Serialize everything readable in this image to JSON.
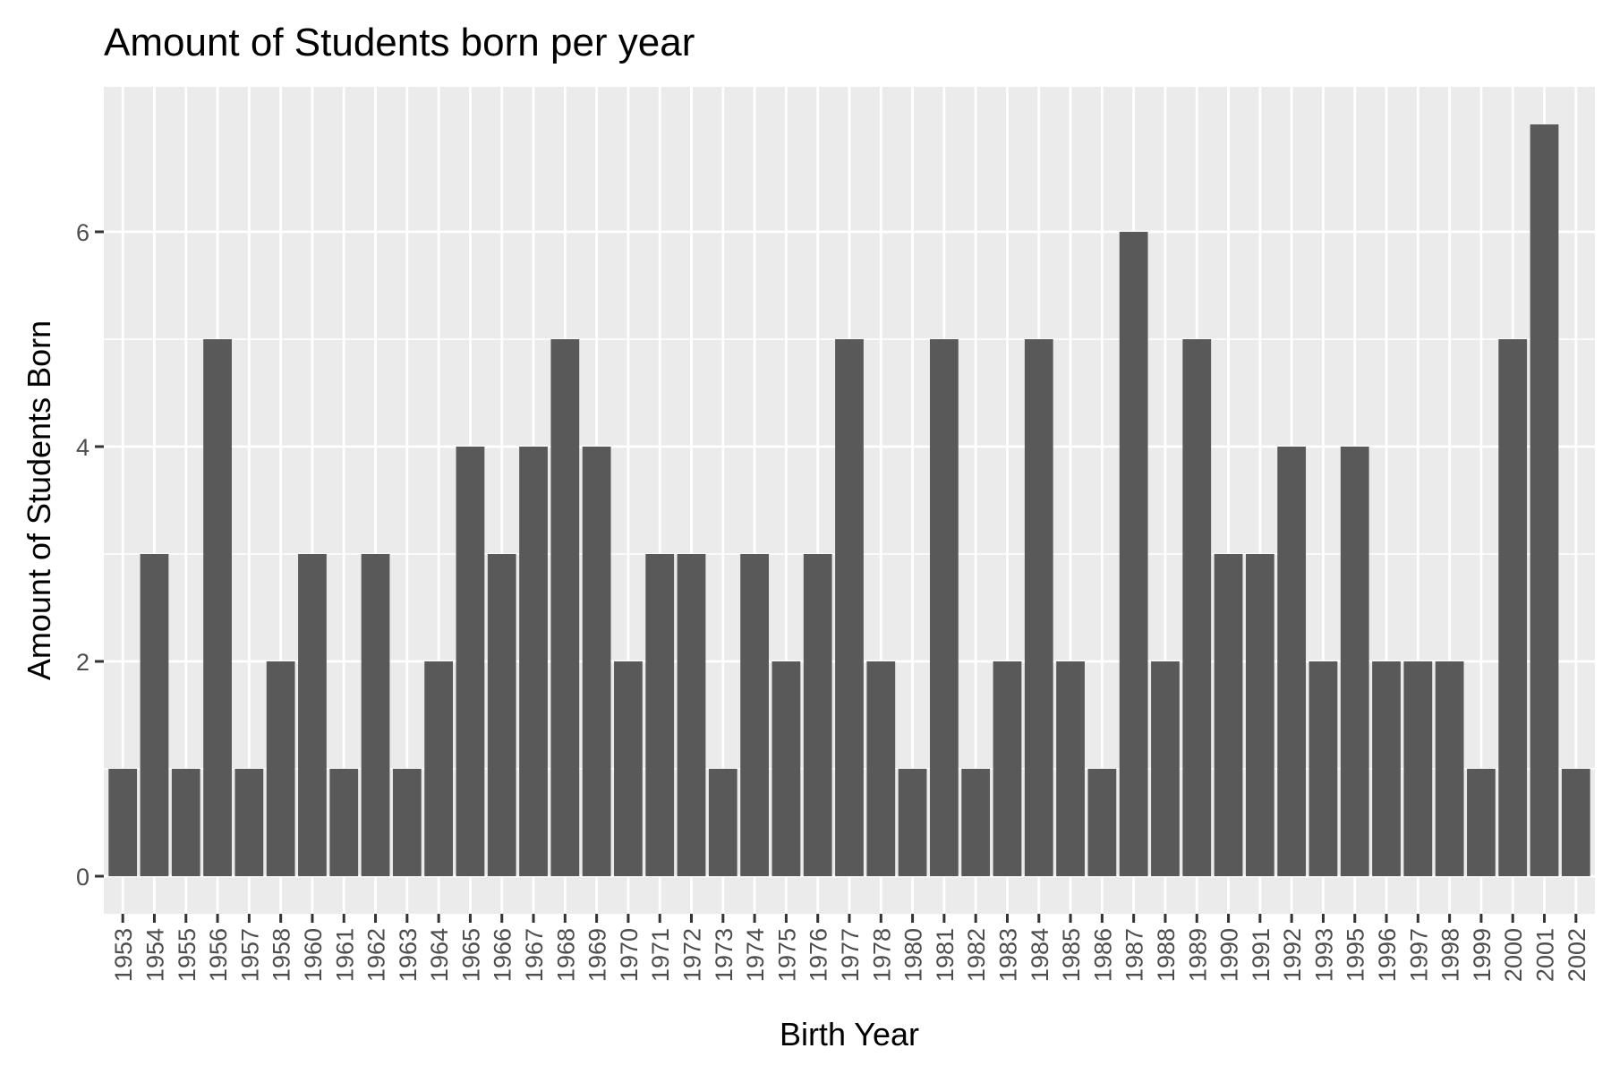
{
  "chart_data": {
    "type": "bar",
    "title": "Amount of Students born per year",
    "xlabel": "Birth Year",
    "ylabel": "Amount of Students Born",
    "categories": [
      "1953",
      "1954",
      "1955",
      "1956",
      "1957",
      "1958",
      "1960",
      "1961",
      "1962",
      "1963",
      "1964",
      "1965",
      "1966",
      "1967",
      "1968",
      "1969",
      "1970",
      "1971",
      "1972",
      "1973",
      "1974",
      "1975",
      "1976",
      "1977",
      "1978",
      "1980",
      "1981",
      "1982",
      "1983",
      "1984",
      "1985",
      "1986",
      "1987",
      "1988",
      "1989",
      "1990",
      "1991",
      "1992",
      "1993",
      "1995",
      "1996",
      "1997",
      "1998",
      "1999",
      "2000",
      "2001",
      "2002"
    ],
    "values": [
      1,
      3,
      1,
      5,
      1,
      2,
      3,
      1,
      3,
      1,
      2,
      4,
      3,
      4,
      5,
      4,
      2,
      3,
      3,
      1,
      3,
      2,
      3,
      5,
      2,
      1,
      5,
      1,
      2,
      5,
      2,
      1,
      6,
      2,
      5,
      3,
      3,
      4,
      2,
      4,
      2,
      2,
      2,
      1,
      5,
      7,
      1
    ],
    "yticks": [
      0,
      2,
      4,
      6
    ],
    "ylim": [
      -0.35,
      7.35
    ],
    "grid": true,
    "colors": {
      "panel": "#ebebeb",
      "grid": "#ffffff",
      "bar": "#595959",
      "tick": "#333333"
    }
  }
}
